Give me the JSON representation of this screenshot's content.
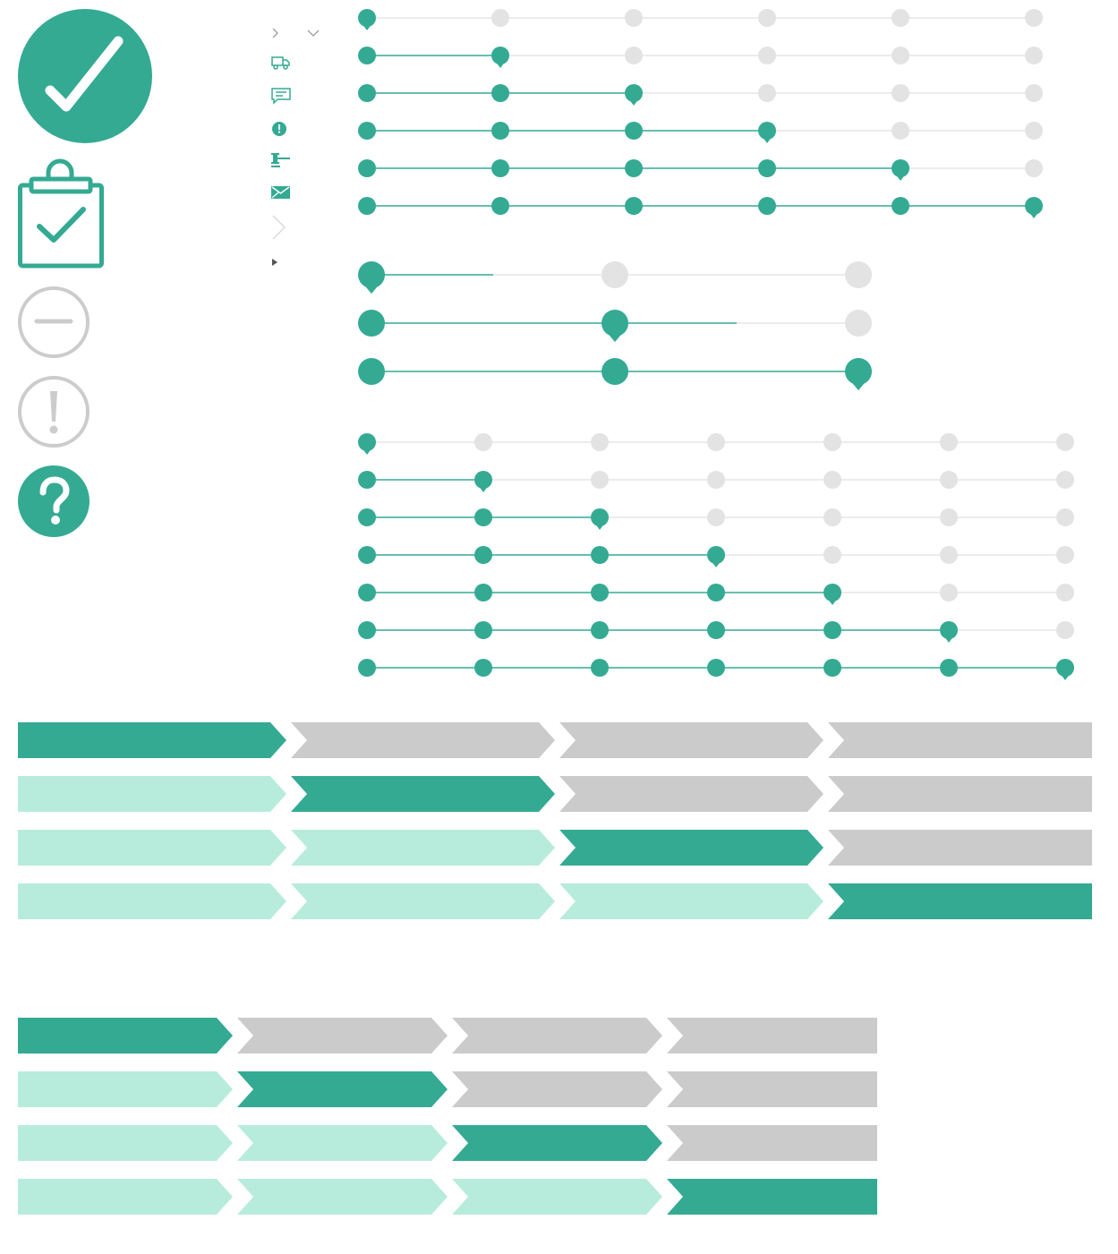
{
  "colors": {
    "accent": "#34aa93",
    "accent_light": "#b7ecdc",
    "inactive_dot": "#e3e3e3",
    "inactive_track": "#e5e5e5",
    "inactive_chevron": "#cbcbcb",
    "status_outline": "#cccccc",
    "small_icon": "#34aa93",
    "arrow_gray": "#9e9e9e"
  },
  "large_icons": [
    {
      "name": "check-circle-icon",
      "style": "filled"
    },
    {
      "name": "clipboard-check-icon",
      "style": "outline"
    },
    {
      "name": "minus-circle-icon",
      "style": "outline-gray"
    },
    {
      "name": "exclamation-circle-icon",
      "style": "outline-gray"
    },
    {
      "name": "question-circle-icon",
      "style": "filled"
    }
  ],
  "small_icons": [
    {
      "name": "chevron-right-icon"
    },
    {
      "name": "chevron-down-icon"
    },
    {
      "name": "truck-icon"
    },
    {
      "name": "message-icon"
    },
    {
      "name": "alert-icon"
    },
    {
      "name": "gavel-icon"
    },
    {
      "name": "mail-icon"
    },
    {
      "name": "large-chevron-right-icon"
    },
    {
      "name": "caret-right-icon"
    }
  ],
  "step_trackers": [
    {
      "id": "tracker-6-steps",
      "steps": 6,
      "active_steps": [
        1,
        2,
        3,
        4,
        5,
        6
      ]
    },
    {
      "id": "tracker-3-steps",
      "steps": 3,
      "active_steps": [
        1,
        2,
        3
      ]
    },
    {
      "id": "tracker-7-steps",
      "steps": 7,
      "active_steps": [
        1,
        2,
        3,
        4,
        5,
        6,
        7
      ]
    }
  ],
  "chevron_bars": [
    {
      "id": "chevron-bar-wide",
      "segments": 4,
      "current_steps": [
        1,
        2,
        3,
        4
      ]
    },
    {
      "id": "chevron-bar-narrow",
      "segments": 4,
      "current_steps": [
        1,
        2,
        3,
        4
      ]
    }
  ]
}
